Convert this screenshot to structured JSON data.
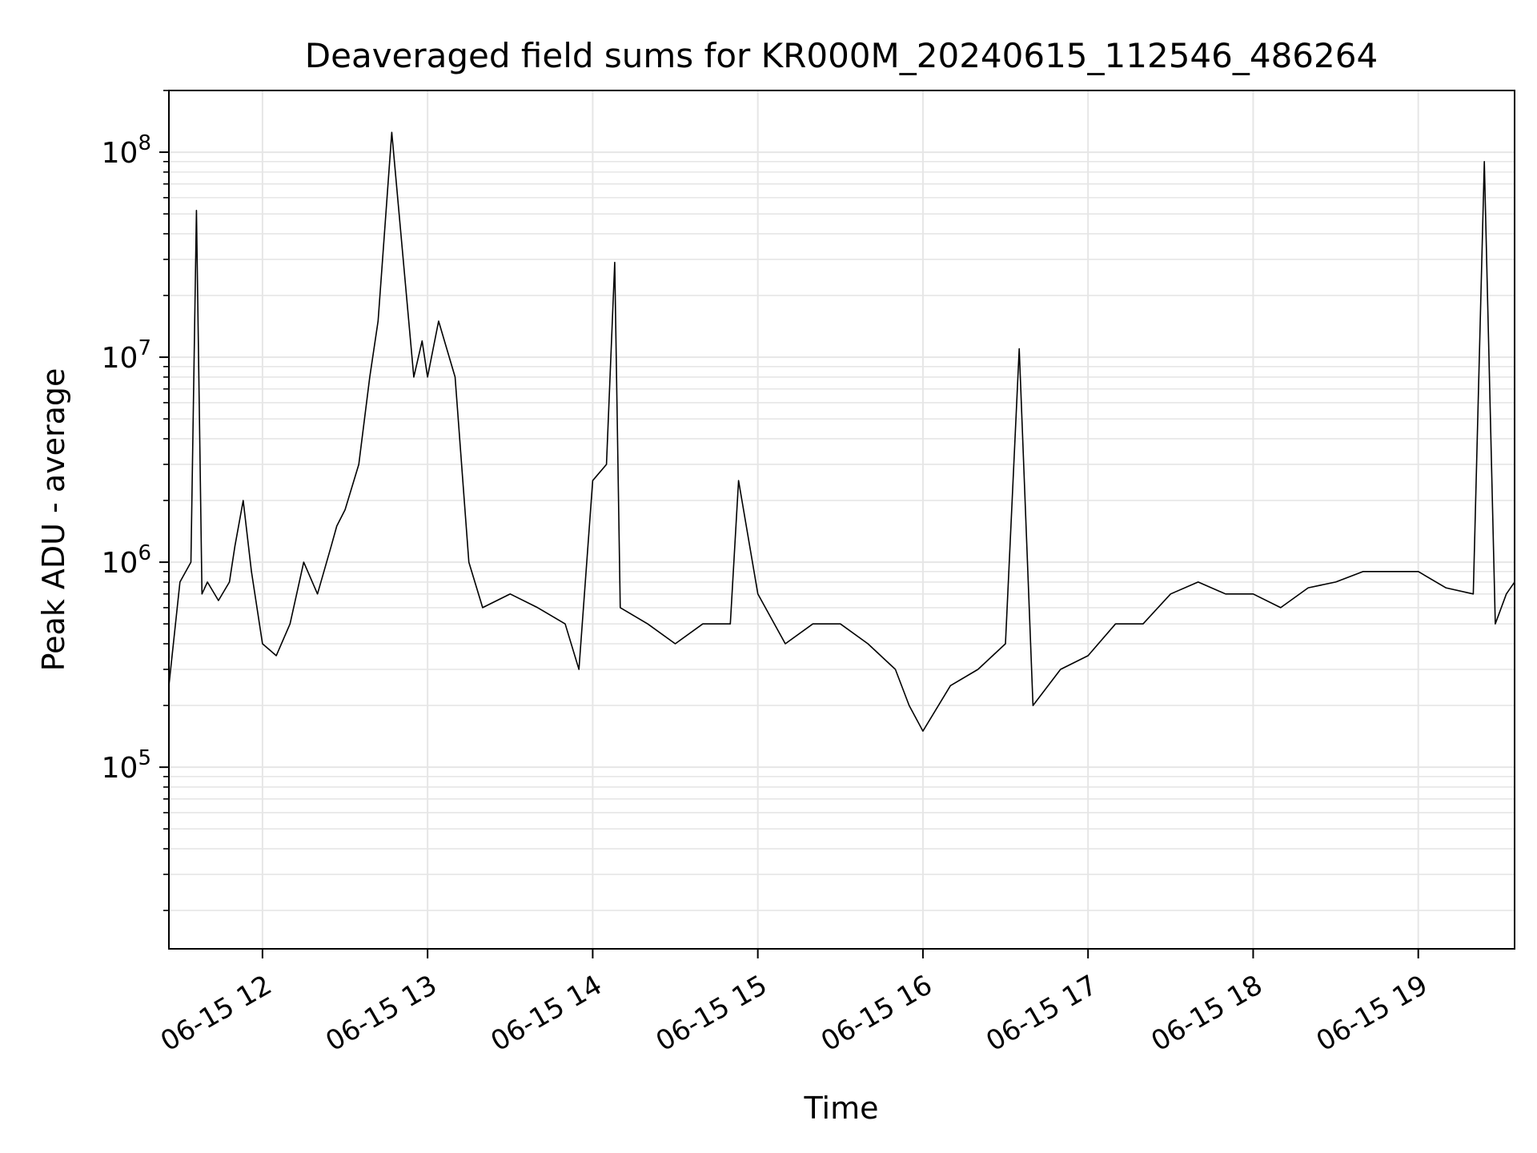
{
  "chart_data": {
    "type": "line",
    "title": "Deaveraged field sums for KR000M_20240615_112546_486264",
    "xlabel": "Time",
    "ylabel": "Peak ADU - average",
    "yscale": "log",
    "ylim": [
      13000,
      200000000
    ],
    "xlim": [
      "2024-06-15 11:26",
      "2024-06-15 19:35"
    ],
    "grid": true,
    "line_color": "#000000",
    "grid_color": "#e6e6e6",
    "x_ticks": [
      {
        "label": "06-15 12",
        "value": "2024-06-15 12:00"
      },
      {
        "label": "06-15 13",
        "value": "2024-06-15 13:00"
      },
      {
        "label": "06-15 14",
        "value": "2024-06-15 14:00"
      },
      {
        "label": "06-15 15",
        "value": "2024-06-15 15:00"
      },
      {
        "label": "06-15 16",
        "value": "2024-06-15 16:00"
      },
      {
        "label": "06-15 17",
        "value": "2024-06-15 17:00"
      },
      {
        "label": "06-15 18",
        "value": "2024-06-15 18:00"
      },
      {
        "label": "06-15 19",
        "value": "2024-06-15 19:00"
      }
    ],
    "y_ticks": [
      {
        "base": "10",
        "exp": "5",
        "value": 100000
      },
      {
        "base": "10",
        "exp": "6",
        "value": 1000000
      },
      {
        "base": "10",
        "exp": "7",
        "value": 10000000
      },
      {
        "base": "10",
        "exp": "8",
        "value": 100000000
      }
    ],
    "series": [
      {
        "x": [
          "2024-06-15 11:26",
          "2024-06-15 11:30",
          "2024-06-15 11:34",
          "2024-06-15 11:36",
          "2024-06-15 11:38",
          "2024-06-15 11:40",
          "2024-06-15 11:44",
          "2024-06-15 11:48",
          "2024-06-15 11:50",
          "2024-06-15 11:53",
          "2024-06-15 11:56",
          "2024-06-15 12:00",
          "2024-06-15 12:05",
          "2024-06-15 12:10",
          "2024-06-15 12:15",
          "2024-06-15 12:20",
          "2024-06-15 12:25",
          "2024-06-15 12:27",
          "2024-06-15 12:30",
          "2024-06-15 12:35",
          "2024-06-15 12:39",
          "2024-06-15 12:42",
          "2024-06-15 12:47",
          "2024-06-15 12:55",
          "2024-06-15 12:58",
          "2024-06-15 13:00",
          "2024-06-15 13:04",
          "2024-06-15 13:10",
          "2024-06-15 13:15",
          "2024-06-15 13:20",
          "2024-06-15 13:30",
          "2024-06-15 13:40",
          "2024-06-15 13:50",
          "2024-06-15 13:55",
          "2024-06-15 14:00",
          "2024-06-15 14:05",
          "2024-06-15 14:08",
          "2024-06-15 14:10",
          "2024-06-15 14:20",
          "2024-06-15 14:30",
          "2024-06-15 14:40",
          "2024-06-15 14:50",
          "2024-06-15 14:53",
          "2024-06-15 15:00",
          "2024-06-15 15:10",
          "2024-06-15 15:20",
          "2024-06-15 15:30",
          "2024-06-15 15:40",
          "2024-06-15 15:50",
          "2024-06-15 15:55",
          "2024-06-15 16:00",
          "2024-06-15 16:10",
          "2024-06-15 16:20",
          "2024-06-15 16:30",
          "2024-06-15 16:35",
          "2024-06-15 16:40",
          "2024-06-15 16:50",
          "2024-06-15 17:00",
          "2024-06-15 17:10",
          "2024-06-15 17:20",
          "2024-06-15 17:30",
          "2024-06-15 17:40",
          "2024-06-15 17:50",
          "2024-06-15 18:00",
          "2024-06-15 18:10",
          "2024-06-15 18:20",
          "2024-06-15 18:30",
          "2024-06-15 18:40",
          "2024-06-15 18:50",
          "2024-06-15 19:00",
          "2024-06-15 19:10",
          "2024-06-15 19:20",
          "2024-06-15 19:24",
          "2024-06-15 19:28",
          "2024-06-15 19:32",
          "2024-06-15 19:35"
        ],
        "y": [
          250000,
          800000,
          1000000,
          52000000,
          700000,
          800000,
          650000,
          800000,
          1200000,
          2000000,
          900000,
          400000,
          350000,
          500000,
          1000000,
          700000,
          1200000,
          1500000,
          1800000,
          3000000,
          8000000,
          15000000,
          125000000,
          8000000,
          12000000,
          8000000,
          15000000,
          8000000,
          1000000,
          600000,
          700000,
          600000,
          500000,
          300000,
          2500000,
          3000000,
          29000000,
          600000,
          500000,
          400000,
          500000,
          500000,
          2500000,
          700000,
          400000,
          500000,
          500000,
          400000,
          300000,
          200000,
          150000,
          250000,
          300000,
          400000,
          11000000,
          200000,
          300000,
          350000,
          500000,
          500000,
          700000,
          800000,
          700000,
          700000,
          600000,
          750000,
          800000,
          900000,
          900000,
          900000,
          750000,
          700000,
          90000000,
          500000,
          700000,
          800000
        ]
      }
    ]
  }
}
